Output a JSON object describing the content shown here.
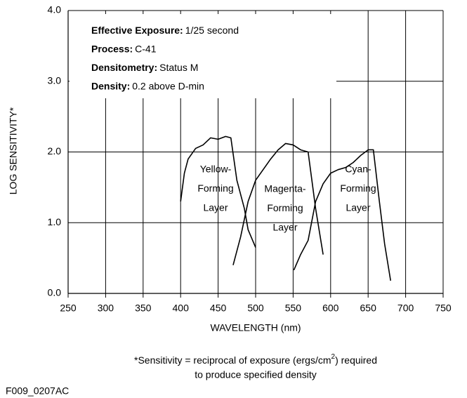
{
  "chart_data": {
    "type": "line",
    "x_label": "WAVELENGTH (nm)",
    "y_label": "LOG SENSITIVITY*",
    "xlim": [
      250,
      750
    ],
    "ylim": [
      0,
      4
    ],
    "xticks": [
      250,
      300,
      350,
      400,
      450,
      500,
      550,
      600,
      650,
      700,
      750
    ],
    "yticks": [
      {
        "value": 0,
        "label": "0.0"
      },
      {
        "value": 1,
        "label": "1.0"
      },
      {
        "value": 2,
        "label": "2.0"
      },
      {
        "value": 3,
        "label": "3.0"
      },
      {
        "value": 4,
        "label": "4.0"
      }
    ],
    "grid": true,
    "series": [
      {
        "color": "#000000",
        "x": [
          400,
          405,
          410,
          420,
          430,
          440,
          450,
          460,
          467,
          475,
          485,
          490,
          500
        ],
        "values": [
          1.3,
          1.7,
          1.9,
          2.05,
          2.1,
          2.2,
          2.18,
          2.22,
          2.2,
          1.6,
          1.2,
          0.9,
          0.65
        ]
      },
      {
        "color": "#000000",
        "x": [
          470,
          480,
          490,
          500,
          510,
          520,
          530,
          540,
          550,
          560,
          570,
          580,
          590
        ],
        "values": [
          0.4,
          0.8,
          1.3,
          1.6,
          1.75,
          1.9,
          2.03,
          2.12,
          2.1,
          2.03,
          2.0,
          1.2,
          0.55
        ]
      },
      {
        "color": "#000000",
        "x": [
          551,
          560,
          570,
          580,
          590,
          600,
          610,
          620,
          630,
          640,
          650,
          657,
          665,
          672,
          680
        ],
        "values": [
          0.33,
          0.55,
          0.75,
          1.3,
          1.55,
          1.7,
          1.75,
          1.78,
          1.85,
          1.95,
          2.03,
          2.03,
          1.3,
          0.7,
          0.18
        ]
      }
    ],
    "annotations": [
      {
        "lines": [
          "Yellow-",
          "Forming",
          "Layer"
        ]
      },
      {
        "lines": [
          "Magenta-",
          "Forming",
          "Layer"
        ]
      },
      {
        "lines": [
          "Cyan-",
          "Forming",
          "Layer"
        ]
      }
    ],
    "info": [
      {
        "label": "Effective Exposure:",
        "value": "1/25 second"
      },
      {
        "label": "Process:",
        "value": "C-41"
      },
      {
        "label": "Densitometry:",
        "value": "Status M"
      },
      {
        "label": "Density:",
        "value": "0.2 above D-min"
      }
    ],
    "footnote": {
      "line1_before": "*Sensitivity = reciprocal of exposure (ergs/cm",
      "line1_sup": "2",
      "line1_after": ") required",
      "line2": "to produce specified density"
    },
    "code": "F009_0207AC"
  }
}
